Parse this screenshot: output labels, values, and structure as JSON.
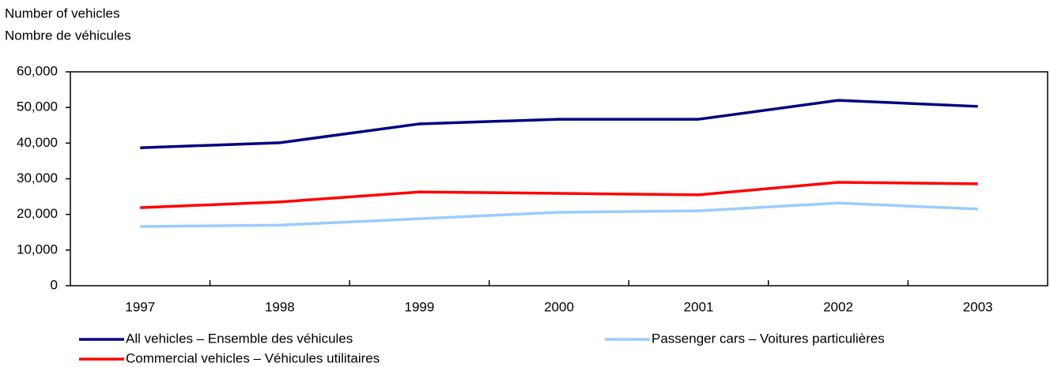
{
  "chart_data": {
    "type": "line",
    "ylabel": [
      "Number of vehicles",
      "Nombre de véhicules"
    ],
    "categories": [
      "1997",
      "1998",
      "1999",
      "2000",
      "2001",
      "2002",
      "2003"
    ],
    "series": [
      {
        "name": "All vehicles – Ensemble des véhicules",
        "color": "#000080",
        "values": [
          38700,
          40100,
          45400,
          46700,
          46700,
          52000,
          50300
        ]
      },
      {
        "name": "Passenger cars – Voitures particulières",
        "color": "#99ccff",
        "values": [
          16600,
          17000,
          18800,
          20600,
          21000,
          23200,
          21500
        ]
      },
      {
        "name": "Commercial vehicles – Véhicules utilitaires",
        "color": "#ff0000",
        "values": [
          21900,
          23500,
          26300,
          25900,
          25500,
          29000,
          28600
        ]
      }
    ],
    "ylim": [
      0,
      60000
    ],
    "yticks": [
      0,
      {
        "value": 10000,
        "label": "10,000"
      },
      {
        "value": 20000,
        "label": "20,000"
      },
      {
        "value": 30000,
        "label": "30,000"
      },
      {
        "value": 40000,
        "label": "40,000"
      },
      {
        "value": 50000,
        "label": "50,000"
      },
      {
        "value": 60000,
        "label": "60,000"
      }
    ],
    "grid": false,
    "legend": "bottom"
  }
}
